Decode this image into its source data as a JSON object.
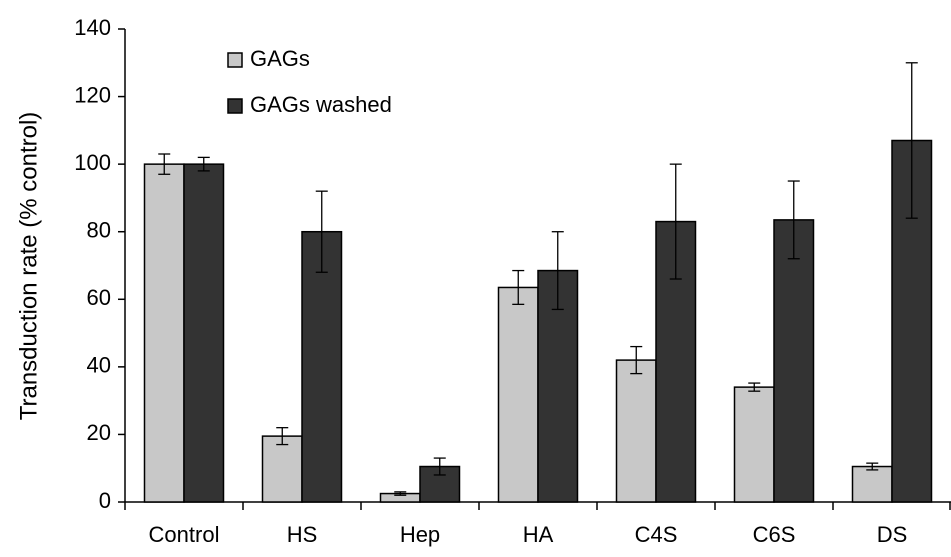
{
  "chart_data": {
    "type": "bar",
    "y_label": "Transduction rate (% control)",
    "categories": [
      "Control",
      "HS",
      "Hep",
      "HA",
      "C4S",
      "C6S",
      "DS"
    ],
    "series": [
      {
        "name": "GAGs",
        "color": "#c8c8c8",
        "values": [
          100,
          19.5,
          2.5,
          63.5,
          42,
          34,
          10.5
        ],
        "errors": [
          3,
          2.5,
          0.5,
          5,
          4,
          1.2,
          1
        ]
      },
      {
        "name": "GAGs washed",
        "color": "#333333",
        "values": [
          100,
          80,
          10.5,
          68.5,
          83,
          83.5,
          107
        ],
        "errors": [
          2,
          12,
          2.5,
          11.5,
          17,
          11.5,
          23
        ]
      }
    ],
    "ylim": [
      0,
      140
    ],
    "yticks": [
      0,
      20,
      40,
      60,
      80,
      100,
      120,
      140
    ],
    "legend": "upper left",
    "grid": false
  }
}
